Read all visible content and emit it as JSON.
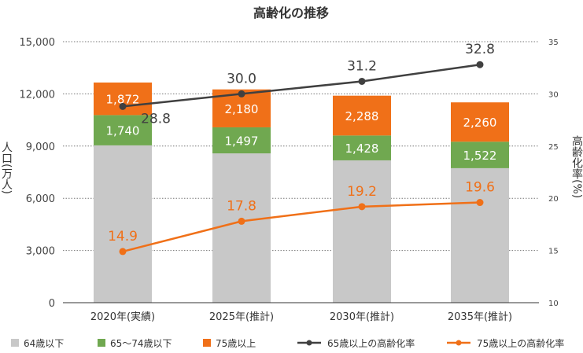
{
  "chart_data": {
    "type": "bar",
    "title": "高齢化の推移",
    "categories": [
      "2020年(実績)",
      "2025年(推計)",
      "2030年(推計)",
      "2035年(推計)"
    ],
    "ylabel": "人口(万人)",
    "y2label": "高齢化率(%)",
    "ylim": [
      0,
      15000
    ],
    "y2lim": [
      10,
      35
    ],
    "yticks": [
      "0",
      "3,000",
      "6,000",
      "9,000",
      "12,000",
      "15,000"
    ],
    "y2ticks": [
      "10",
      "15",
      "20",
      "25",
      "30",
      "35"
    ],
    "grid": true,
    "legend_position": "bottom",
    "series": [
      {
        "name": "64歳以下",
        "kind": "bar",
        "color": "#c8c8c8",
        "values": [
          9040,
          8580,
          8180,
          7730
        ],
        "labels": [
          "",
          "",
          "",
          ""
        ]
      },
      {
        "name": "65〜74歳以下",
        "kind": "bar",
        "color": "#70a850",
        "values": [
          1740,
          1497,
          1428,
          1522
        ],
        "labels": [
          "1,740",
          "1,497",
          "1,428",
          "1,522"
        ]
      },
      {
        "name": "75歳以上",
        "kind": "bar",
        "color": "#f07018",
        "values": [
          1872,
          2180,
          2288,
          2260
        ],
        "labels": [
          "1,872",
          "2,180",
          "2,288",
          "2,260"
        ]
      },
      {
        "name": "65歳以上の高齢化率",
        "kind": "line",
        "axis": "right",
        "color": "#404040",
        "values": [
          28.8,
          30.0,
          31.2,
          32.8
        ],
        "labels": [
          "28.8",
          "30.0",
          "31.2",
          "32.8"
        ]
      },
      {
        "name": "75歳以上の高齢化率",
        "kind": "line",
        "axis": "right",
        "color": "#f07018",
        "values": [
          14.9,
          17.8,
          19.2,
          19.6
        ],
        "labels": [
          "14.9",
          "17.8",
          "19.2",
          "19.6"
        ]
      }
    ]
  }
}
